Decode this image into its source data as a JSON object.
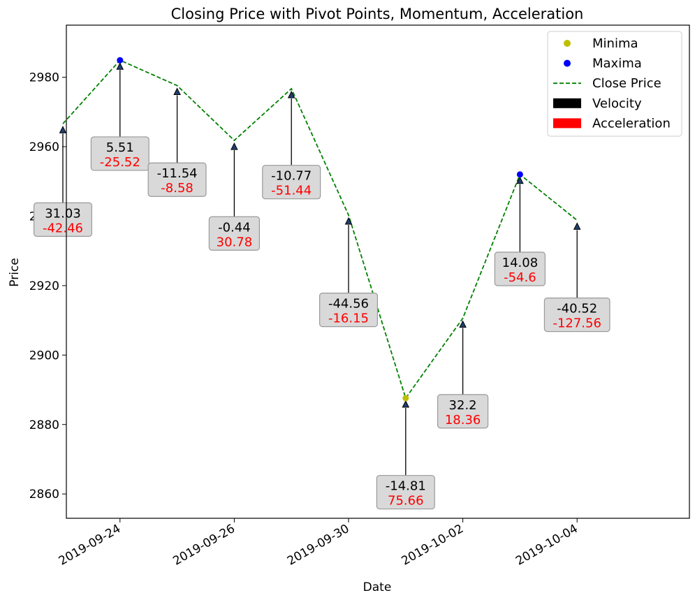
{
  "chart_data": {
    "type": "line",
    "title": "Closing Price with Pivot Points, Momentum, Acceleration",
    "xlabel": "Date",
    "ylabel": "Price",
    "ylim": [
      2853,
      2995
    ],
    "yticks": [
      2860,
      2880,
      2900,
      2920,
      2940,
      2960,
      2980
    ],
    "xtick_labels": [
      "2019-09-24",
      "2019-09-26",
      "2019-09-30",
      "2019-10-02",
      "2019-10-04"
    ],
    "xtick_index": [
      0,
      2,
      4,
      6,
      8
    ],
    "grid": false,
    "legend_position": "top-right",
    "legend": {
      "minima": "Minima",
      "maxima": "Maxima",
      "close": "Close Price",
      "velocity": "Velocity",
      "acceleration": "Acceleration"
    },
    "colors": {
      "minima": "#bfbf00",
      "maxima": "#0000ff",
      "close": "#008000",
      "velocity": "#000000",
      "acceleration": "#ff0000",
      "box_fill": "#d9d9d9",
      "box_edge": "#999999",
      "marker": "#1f3f6f"
    },
    "series_close": {
      "name": "Close Price",
      "x": [
        "2019-09-23",
        "2019-09-24",
        "2019-09-25",
        "2019-09-26",
        "2019-09-27",
        "2019-09-30",
        "2019-10-01",
        "2019-10-02",
        "2019-10-03",
        "2019-10-04"
      ],
      "values": [
        2966.6,
        2984.9,
        2977.6,
        2961.8,
        2976.7,
        2940.3,
        2887.6,
        2910.6,
        2952.0,
        2938.8
      ]
    },
    "minima_points": [
      {
        "x": "2019-10-01",
        "y": 2887.6
      }
    ],
    "maxima_points": [
      {
        "x": "2019-09-24",
        "y": 2984.9
      },
      {
        "x": "2019-10-03",
        "y": 2952.0
      }
    ],
    "annotations": [
      {
        "x": "2019-09-23",
        "point_y": 2966.6,
        "text_y": 2938.0,
        "velocity": "31.03",
        "acceleration": "-42.46"
      },
      {
        "x": "2019-09-24",
        "point_y": 2984.9,
        "text_y": 2957.0,
        "velocity": "5.51",
        "acceleration": "-25.52"
      },
      {
        "x": "2019-09-25",
        "point_y": 2977.6,
        "text_y": 2949.5,
        "velocity": "-11.54",
        "acceleration": "-8.58"
      },
      {
        "x": "2019-09-26",
        "point_y": 2961.8,
        "text_y": 2934.0,
        "velocity": "-0.44",
        "acceleration": "30.78"
      },
      {
        "x": "2019-09-27",
        "point_y": 2976.7,
        "text_y": 2948.8,
        "velocity": "-10.77",
        "acceleration": "-51.44"
      },
      {
        "x": "2019-09-30",
        "point_y": 2940.3,
        "text_y": 2912.0,
        "velocity": "-44.56",
        "acceleration": "-16.15"
      },
      {
        "x": "2019-10-01",
        "point_y": 2887.6,
        "text_y": 2859.5,
        "velocity": "-14.81",
        "acceleration": "75.66"
      },
      {
        "x": "2019-10-02",
        "point_y": 2910.6,
        "text_y": 2882.8,
        "velocity": "32.2",
        "acceleration": "18.36"
      },
      {
        "x": "2019-10-03",
        "point_y": 2952.0,
        "text_y": 2923.8,
        "velocity": "14.08",
        "acceleration": "-54.6"
      },
      {
        "x": "2019-10-04",
        "point_y": 2938.8,
        "text_y": 2910.6,
        "velocity": "-40.52",
        "acceleration": "-127.56"
      }
    ]
  }
}
